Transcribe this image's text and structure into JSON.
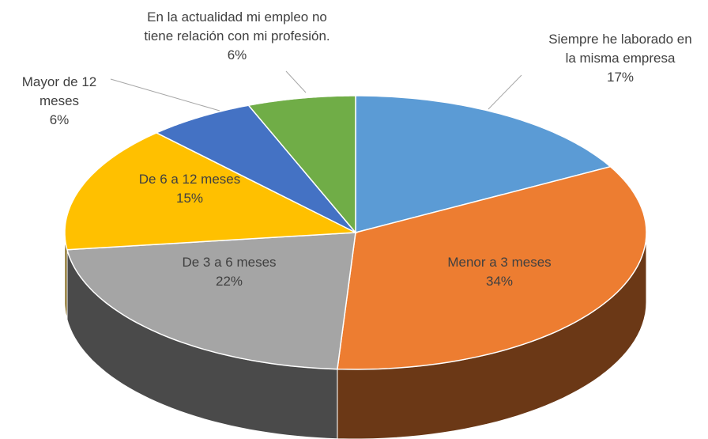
{
  "chart_data": {
    "type": "pie",
    "categories": [
      "Siempre he laborado en la misma empresa",
      "Menor a 3 meses",
      "De 3 a 6 meses",
      "De 6 a 12 meses",
      "Mayor de 12 meses",
      "En la actualidad mi empleo no tiene relación con mi profesión."
    ],
    "values": [
      17,
      34,
      22,
      15,
      6,
      6
    ],
    "value_labels": [
      "17%",
      "34%",
      "22%",
      "15%",
      "6%",
      "6%"
    ],
    "colors": [
      "#5b9bd5",
      "#ed7d31",
      "#a5a5a5",
      "#ffc000",
      "#4472c4",
      "#70ad47"
    ]
  }
}
